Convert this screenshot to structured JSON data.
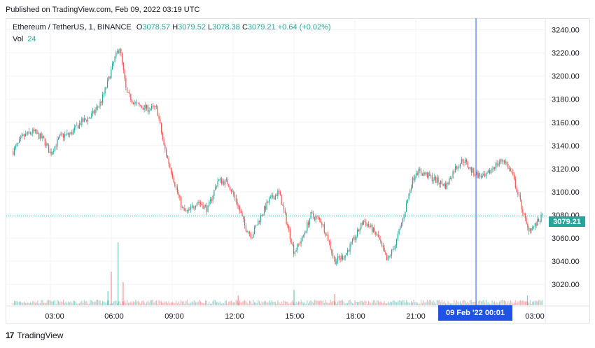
{
  "header": {
    "published": "Published on TradingView.com, Feb 09, 2022 03:19 UTC"
  },
  "legend": {
    "symbol": "Ethereum / TetherUS, 1, BINANCE",
    "o_label": "O",
    "o_value": "3078.57",
    "h_label": "H",
    "h_value": "3079.52",
    "l_label": "L",
    "l_value": "3078.38",
    "c_label": "C",
    "c_value": "3079.21",
    "change": "+0.64 (+0.02%)",
    "vol_label": "Vol",
    "vol_value": "24"
  },
  "price_badge": "3079.21",
  "time_badge": "09 Feb '22   00:01",
  "footer": {
    "logo_text": "TradingView",
    "logo_mark": "17"
  },
  "colors": {
    "up": "#26a69a",
    "down": "#ef5350",
    "crosshair": "#2962ff",
    "grid": "#f0f3fa",
    "price_line": "#26a69a"
  },
  "chart_data": {
    "type": "candlestick",
    "x_ticks": [
      "03:00",
      "06:00",
      "09:00",
      "12:00",
      "15:00",
      "18:00",
      "21:00",
      "03:00"
    ],
    "y_ticks": [
      "3240.00",
      "3220.00",
      "3200.00",
      "3180.00",
      "3160.00",
      "3140.00",
      "3120.00",
      "3100.00",
      "3080.00",
      "3060.00",
      "3040.00",
      "3020.00"
    ],
    "ylim": [
      3002,
      3250
    ],
    "last_price": 3079.21,
    "path_points": [
      [
        "01:10",
        3135
      ],
      [
        "01:40",
        3148
      ],
      [
        "02:10",
        3152
      ],
      [
        "02:40",
        3145
      ],
      [
        "03:00",
        3133
      ],
      [
        "03:30",
        3148
      ],
      [
        "04:00",
        3150
      ],
      [
        "04:30",
        3160
      ],
      [
        "05:00",
        3165
      ],
      [
        "05:30",
        3178
      ],
      [
        "05:50",
        3195
      ],
      [
        "06:10",
        3215
      ],
      [
        "06:25",
        3225
      ],
      [
        "06:45",
        3185
      ],
      [
        "07:15",
        3175
      ],
      [
        "07:45",
        3172
      ],
      [
        "08:15",
        3172
      ],
      [
        "08:35",
        3140
      ],
      [
        "09:00",
        3115
      ],
      [
        "09:30",
        3085
      ],
      [
        "09:45",
        3082
      ],
      [
        "10:15",
        3092
      ],
      [
        "10:45",
        3085
      ],
      [
        "11:15",
        3110
      ],
      [
        "11:45",
        3108
      ],
      [
        "12:15",
        3088
      ],
      [
        "12:35",
        3070
      ],
      [
        "12:55",
        3062
      ],
      [
        "13:20",
        3078
      ],
      [
        "13:45",
        3092
      ],
      [
        "14:15",
        3100
      ],
      [
        "14:40",
        3072
      ],
      [
        "15:00",
        3048
      ],
      [
        "15:25",
        3060
      ],
      [
        "15:50",
        3080
      ],
      [
        "16:20",
        3075
      ],
      [
        "16:40",
        3060
      ],
      [
        "17:00",
        3040
      ],
      [
        "17:30",
        3045
      ],
      [
        "18:00",
        3060
      ],
      [
        "18:25",
        3075
      ],
      [
        "18:50",
        3068
      ],
      [
        "19:10",
        3060
      ],
      [
        "19:35",
        3040
      ],
      [
        "20:00",
        3055
      ],
      [
        "20:25",
        3080
      ],
      [
        "20:45",
        3105
      ],
      [
        "21:00",
        3118
      ],
      [
        "21:30",
        3115
      ],
      [
        "22:00",
        3110
      ],
      [
        "22:30",
        3105
      ],
      [
        "22:55",
        3120
      ],
      [
        "23:20",
        3128
      ],
      [
        "23:45",
        3118
      ],
      [
        "00:01",
        3115
      ],
      [
        "00:25",
        3112
      ],
      [
        "00:50",
        3122
      ],
      [
        "01:20",
        3128
      ],
      [
        "01:45",
        3115
      ],
      [
        "02:10",
        3090
      ],
      [
        "02:30",
        3068
      ],
      [
        "02:50",
        3070
      ],
      [
        "03:15",
        3079
      ]
    ],
    "volume_spikes": [
      [
        "06:00",
        48
      ],
      [
        "06:20",
        90
      ],
      [
        "06:35",
        33
      ],
      [
        "05:50",
        20
      ],
      [
        "12:15",
        14
      ],
      [
        "15:00",
        22
      ],
      [
        "17:00",
        16
      ],
      [
        "02:30",
        14
      ]
    ]
  }
}
